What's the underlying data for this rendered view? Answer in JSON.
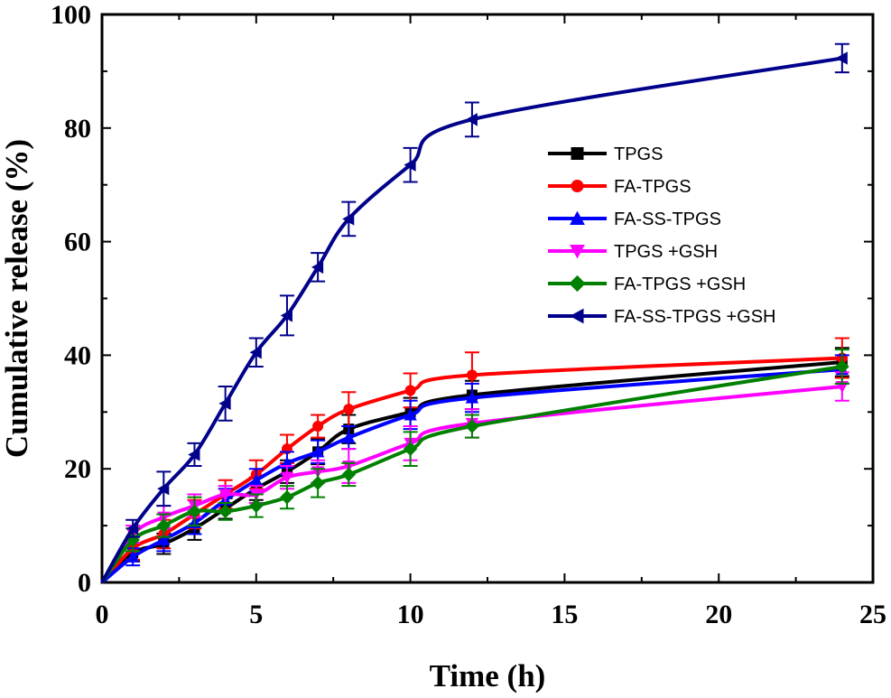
{
  "chart_data": {
    "type": "line",
    "title": "",
    "xlabel": "Time (h)",
    "ylabel": "Cumulative release (%)",
    "xlim": [
      0,
      25
    ],
    "ylim": [
      0,
      100
    ],
    "xticks": [
      0,
      5,
      10,
      15,
      20,
      25
    ],
    "yticks": [
      0,
      20,
      40,
      60,
      80,
      100
    ],
    "grid": false,
    "legend_position": "right",
    "x": [
      0,
      1,
      2,
      3,
      4,
      5,
      6,
      7,
      8,
      10,
      12,
      24
    ],
    "series": [
      {
        "name": "TPGS",
        "color": "#000000",
        "marker": "square",
        "values": [
          0,
          5.2,
          6.8,
          9.5,
          13.0,
          16.5,
          19.5,
          23.0,
          27.0,
          30.0,
          33.0,
          38.8
        ],
        "errors": [
          0,
          1.5,
          1.8,
          2.0,
          1.8,
          2.0,
          2.0,
          2.2,
          2.5,
          2.5,
          2.5,
          2.5
        ]
      },
      {
        "name": "FA-TPGS",
        "color": "#ff0000",
        "marker": "circle",
        "values": [
          0,
          6.0,
          8.5,
          12.0,
          15.5,
          19.0,
          23.5,
          27.5,
          30.5,
          33.8,
          36.5,
          39.5
        ],
        "errors": [
          0,
          2.0,
          2.5,
          2.5,
          2.5,
          2.5,
          2.5,
          2.0,
          3.0,
          3.0,
          4.0,
          3.5
        ]
      },
      {
        "name": "FA-SS-TPGS",
        "color": "#0000ff",
        "marker": "triangle-up",
        "values": [
          0,
          4.5,
          7.5,
          10.5,
          14.5,
          18.0,
          21.0,
          23.0,
          25.5,
          29.5,
          32.5,
          37.5
        ],
        "errors": [
          0,
          1.5,
          2.0,
          2.0,
          2.0,
          2.0,
          2.0,
          2.0,
          2.0,
          2.5,
          2.5,
          2.5
        ]
      },
      {
        "name": "TPGS +GSH",
        "color": "#ff00ff",
        "marker": "triangle-down",
        "values": [
          0,
          8.5,
          11.5,
          13.5,
          15.5,
          15.5,
          18.5,
          19.5,
          20.5,
          24.5,
          28.0,
          34.5
        ],
        "errors": [
          0,
          1.5,
          2.0,
          2.0,
          1.5,
          1.5,
          2.0,
          2.0,
          3.0,
          3.0,
          2.5,
          2.5
        ]
      },
      {
        "name": "FA-TPGS +GSH",
        "color": "#008000",
        "marker": "diamond",
        "values": [
          0,
          7.5,
          10.0,
          12.5,
          12.5,
          13.5,
          15.0,
          17.5,
          19.0,
          23.5,
          27.5,
          38.0
        ],
        "errors": [
          0,
          2.0,
          2.0,
          2.5,
          1.5,
          2.0,
          2.0,
          2.5,
          2.0,
          3.0,
          2.0,
          3.0
        ]
      },
      {
        "name": "FA-SS-TPGS +GSH",
        "color": "#00008b",
        "marker": "triangle-left",
        "values": [
          0,
          9.5,
          16.5,
          22.5,
          31.5,
          40.5,
          47.0,
          55.5,
          64.0,
          73.5,
          81.5,
          92.3
        ],
        "errors": [
          0,
          1.5,
          3.0,
          2.0,
          3.0,
          2.5,
          3.5,
          2.5,
          3.0,
          3.0,
          3.0,
          2.5
        ]
      }
    ]
  }
}
